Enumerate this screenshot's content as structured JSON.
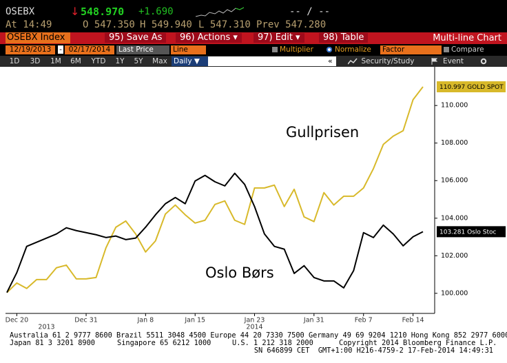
{
  "quote": {
    "ticker": "OSEBX",
    "arrow": "↓",
    "last": "548.970",
    "change": "+1.690",
    "range": "-- / --",
    "time": "At 14:49",
    "open": "O 547.350",
    "high": "H 549.940",
    "low": "L 547.310",
    "prev": "Prev 547.280"
  },
  "toolbar": {
    "security": "OSEBX Index",
    "buttons": [
      "95) Save As",
      "96) Actions ▾",
      "97) Edit ▾",
      "98) Table"
    ],
    "title": "Multi-line Chart"
  },
  "settings": {
    "start": "12/19/2013",
    "dash": "-",
    "end": "02/17/2014",
    "field": "Last Price",
    "style": "Line",
    "multiplier": "Multiplier",
    "normalize": "Normalize",
    "factor": "Factor",
    "compare": "Compare"
  },
  "periods": [
    "1D",
    "3D",
    "1M",
    "6M",
    "YTD",
    "1Y",
    "5Y",
    "Max"
  ],
  "frequency": "Daily ▼",
  "tools": [
    "«",
    "Security/Study",
    "Event"
  ],
  "chart_data": {
    "type": "line",
    "categories": [
      null,
      "Dec 20",
      null,
      null,
      null,
      null,
      null,
      null,
      "Dec 31",
      null,
      null,
      null,
      null,
      null,
      "Jan 8",
      null,
      null,
      null,
      null,
      "Jan 15",
      null,
      null,
      null,
      null,
      null,
      "Jan 23",
      null,
      null,
      null,
      null,
      null,
      "Jan 31",
      null,
      null,
      null,
      null,
      "Feb 7",
      null,
      null,
      null,
      null,
      "Feb 14",
      null
    ],
    "year_categories": [
      null,
      null,
      null,
      null,
      "2013",
      null,
      null,
      null,
      null,
      null,
      null,
      null,
      null,
      null,
      null,
      null,
      null,
      null,
      null,
      null,
      null,
      null,
      null,
      null,
      null,
      "2014",
      null,
      null,
      null,
      null,
      null,
      null,
      null,
      null,
      null,
      null,
      null,
      null,
      null,
      null,
      null,
      null,
      null
    ],
    "series": [
      {
        "name": "GOLD SPOT",
        "color": "#d8b92a",
        "values": [
          100.04,
          100.55,
          100.26,
          100.73,
          100.73,
          101.36,
          101.5,
          100.77,
          100.77,
          100.84,
          102.42,
          103.52,
          103.85,
          103.16,
          102.2,
          102.79,
          104.22,
          104.7,
          104.18,
          103.74,
          103.89,
          104.73,
          104.92,
          103.89,
          103.67,
          105.61,
          105.61,
          105.76,
          104.62,
          105.54,
          104.07,
          103.82,
          105.36,
          104.7,
          105.17,
          105.17,
          105.61,
          106.64,
          107.93,
          108.37,
          108.66,
          110.31,
          110.997
        ]
      },
      {
        "name": "Oslo Stoc",
        "color": "#000000",
        "values": [
          100.04,
          101.1,
          102.5,
          102.72,
          102.94,
          103.16,
          103.49,
          103.34,
          103.23,
          103.12,
          102.97,
          103.05,
          102.86,
          102.94,
          103.52,
          104.18,
          104.77,
          105.1,
          104.77,
          105.98,
          106.28,
          105.94,
          105.72,
          106.39,
          105.8,
          104.62,
          103.16,
          102.5,
          102.35,
          101.06,
          101.47,
          100.84,
          100.66,
          100.66,
          100.29,
          101.21,
          103.23,
          102.97,
          103.63,
          103.16,
          102.53,
          103.01,
          103.281
        ]
      }
    ],
    "annotations": [
      "Gullprisen",
      "Oslo Børs"
    ],
    "ylim": [
      98.93,
      112.06
    ],
    "yticks": [
      {
        "value": 100,
        "label": "100.000"
      },
      {
        "value": 102,
        "label": "102.000"
      },
      {
        "value": 104,
        "label": "104.000"
      },
      {
        "value": 106,
        "label": "106.000"
      },
      {
        "value": 108,
        "label": "108.000"
      },
      {
        "value": 110,
        "label": "110.000"
      }
    ],
    "grid": false
  },
  "footer": {
    "line1": "Australia 61 2 9777 8600 Brazil 5511 3048 4500 Europe 44 20 7330 7500 Germany 49 69 9204 1210 Hong Kong 852 2977 6000",
    "line2": [
      "Japan 81 3 3201 8900",
      "Singapore 65 6212 1000",
      "U.S. 1 212 318 2000",
      "Copyright 2014 Bloomberg Finance L.P."
    ],
    "line3": "SN 646899 CET  GMT+1:00 H216-4759-2 17-Feb-2014 14:49:31"
  }
}
